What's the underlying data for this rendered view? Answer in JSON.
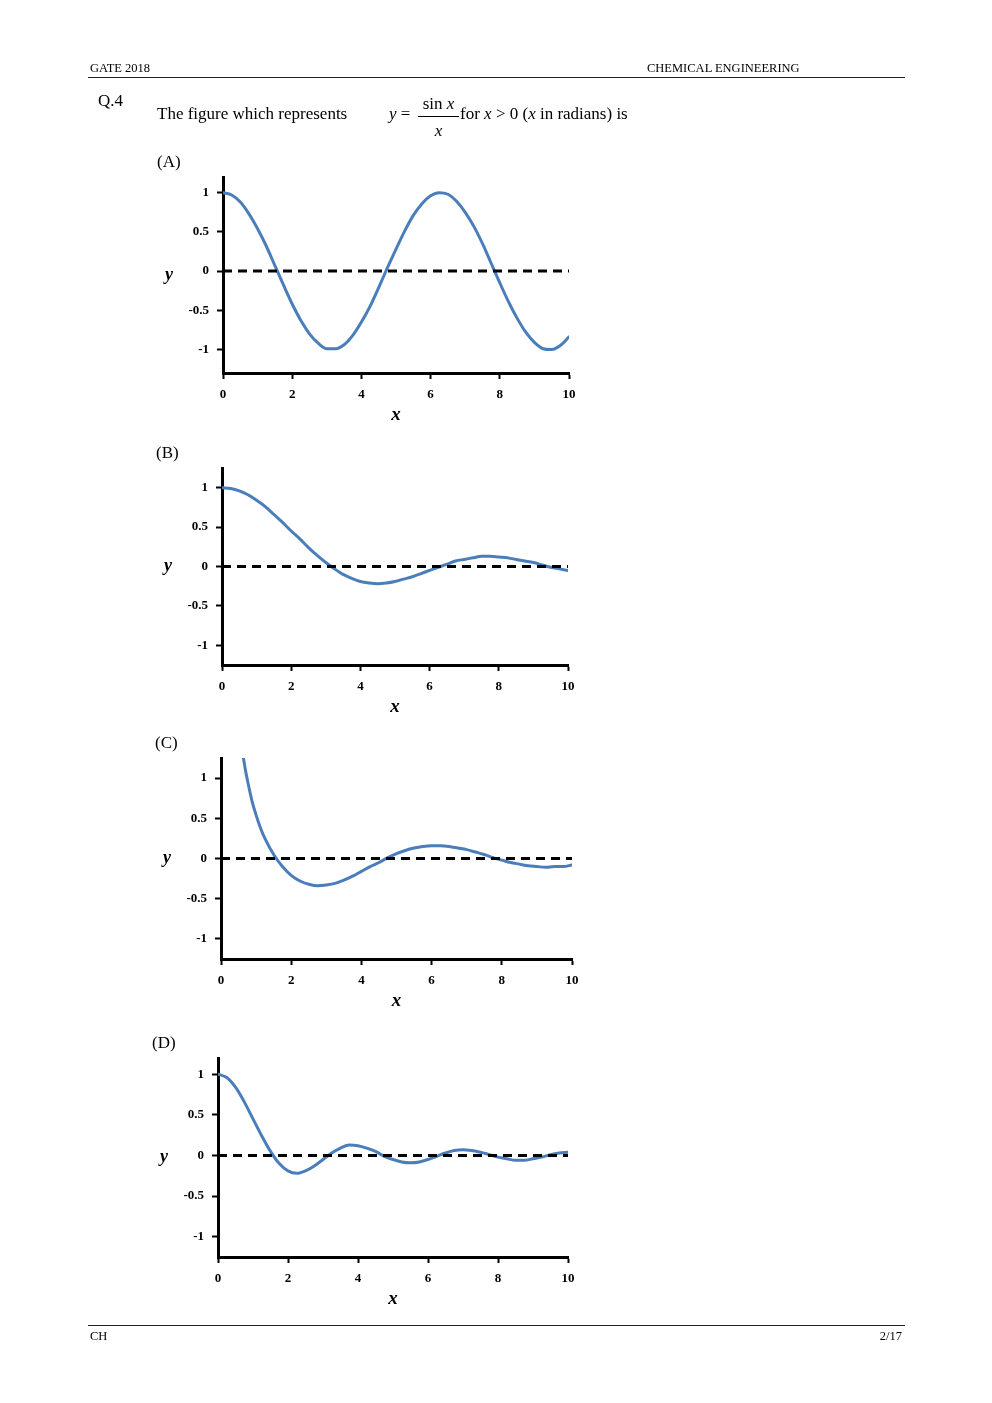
{
  "chart_data": [
    {
      "type": "line",
      "title": "(A)",
      "xlabel": "x",
      "ylabel": "y",
      "marker": "none",
      "annotations": [
        "GATE 2018",
        "CHEMICAL ENGINEERING",
        "Q.4",
        "The figure which represents",
        "y =",
        "sin x",
        "x",
        "for x > 0 (x in radians) is"
      ],
      "x": [
        0,
        0.25,
        0.5,
        0.75,
        1,
        1.25,
        1.5,
        1.75,
        2,
        2.25,
        2.5,
        2.75,
        3,
        3.25,
        3.5,
        3.75,
        4,
        4.25,
        4.5,
        4.75,
        5,
        5.25,
        5.5,
        5.75,
        6,
        6.25,
        6.5,
        6.75,
        7,
        7.25,
        7.5,
        7.75,
        8,
        8.25,
        8.5,
        8.75,
        9,
        9.25,
        9.5,
        9.75,
        10
      ],
      "series": [
        {
          "color": "#4a7ebb",
          "values": [
            1,
            0.97,
            0.88,
            0.73,
            0.54,
            0.32,
            0.07,
            -0.18,
            -0.42,
            -0.63,
            -0.8,
            -0.92,
            -0.99,
            -0.99,
            -0.94,
            -0.82,
            -0.65,
            -0.45,
            -0.21,
            0.04,
            0.28,
            0.51,
            0.71,
            0.86,
            0.96,
            1,
            0.98,
            0.89,
            0.75,
            0.57,
            0.35,
            0.1,
            -0.15,
            -0.39,
            -0.6,
            -0.78,
            -0.91,
            -0.99,
            -1,
            -0.95,
            -0.84
          ]
        }
      ],
      "xlim": [
        0,
        10
      ],
      "ylim": [
        -1.3,
        1.2
      ],
      "xticks": [
        0,
        2,
        4,
        6,
        8,
        10
      ],
      "yticks": [
        -1,
        -0.5,
        0,
        0.5,
        1
      ],
      "ref_lines": [
        {
          "axis": "y",
          "value": 0,
          "color": "#000000",
          "line_style": "dashed"
        }
      ]
    },
    {
      "type": "line",
      "title": "(B)",
      "xlabel": "x",
      "ylabel": "y",
      "marker": "none",
      "x": [
        0,
        0.25,
        0.5,
        0.75,
        1,
        1.25,
        1.5,
        1.75,
        2,
        2.25,
        2.5,
        2.75,
        3,
        3.25,
        3.5,
        3.75,
        4,
        4.25,
        4.5,
        4.75,
        5,
        5.25,
        5.5,
        5.75,
        6,
        6.25,
        6.5,
        6.75,
        7,
        7.25,
        7.5,
        7.75,
        8,
        8.25,
        8.5,
        8.75,
        9,
        9.25,
        9.5,
        9.75,
        10
      ],
      "series": [
        {
          "color": "#4a7ebb",
          "values": [
            1,
            0.99,
            0.96,
            0.91,
            0.84,
            0.76,
            0.66,
            0.56,
            0.45,
            0.35,
            0.24,
            0.14,
            0.05,
            -0.03,
            -0.1,
            -0.15,
            -0.19,
            -0.21,
            -0.22,
            -0.21,
            -0.19,
            -0.16,
            -0.13,
            -0.09,
            -0.05,
            -0.01,
            0.03,
            0.07,
            0.09,
            0.11,
            0.13,
            0.13,
            0.12,
            0.11,
            0.09,
            0.07,
            0.05,
            0.02,
            -0.01,
            -0.03,
            -0.05
          ]
        }
      ],
      "xlim": [
        0,
        10
      ],
      "ylim": [
        -1.25,
        1.25
      ],
      "xticks": [
        0,
        2,
        4,
        6,
        8,
        10
      ],
      "yticks": [
        -1,
        -0.5,
        0,
        0.5,
        1
      ],
      "ref_lines": [
        {
          "axis": "y",
          "value": 0,
          "color": "#000000",
          "line_style": "dashed"
        }
      ]
    },
    {
      "type": "line",
      "title": "(C)",
      "xlabel": "x",
      "ylabel": "y",
      "marker": "none",
      "x": [
        0.64,
        0.7,
        0.75,
        0.875,
        1,
        1.125,
        1.25,
        1.5,
        1.75,
        2,
        2.25,
        2.5,
        2.75,
        3,
        3.25,
        3.5,
        3.75,
        4,
        4.25,
        4.5,
        4.75,
        5,
        5.25,
        5.5,
        5.75,
        6,
        6.25,
        6.5,
        6.75,
        7,
        7.25,
        7.5,
        7.75,
        8,
        8.25,
        8.5,
        8.75,
        9,
        9.25,
        9.5,
        9.75,
        10
      ],
      "series": [
        {
          "color": "#4a7ebb",
          "values": [
            1.25,
            1.09,
            0.98,
            0.73,
            0.54,
            0.38,
            0.25,
            0.05,
            -0.1,
            -0.21,
            -0.28,
            -0.32,
            -0.34,
            -0.33,
            -0.31,
            -0.27,
            -0.22,
            -0.16,
            -0.1,
            -0.05,
            0.01,
            0.06,
            0.1,
            0.13,
            0.15,
            0.16,
            0.16,
            0.15,
            0.13,
            0.11,
            0.08,
            0.05,
            0.01,
            -0.02,
            -0.05,
            -0.07,
            -0.09,
            -0.1,
            -0.11,
            -0.1,
            -0.1,
            -0.08
          ]
        }
      ],
      "xlim": [
        0,
        10
      ],
      "ylim": [
        -1.25,
        1.25
      ],
      "xticks": [
        0,
        2,
        4,
        6,
        8,
        10
      ],
      "yticks": [
        -1,
        -0.5,
        0,
        0.5,
        1
      ],
      "ref_lines": [
        {
          "axis": "y",
          "value": 0,
          "color": "#000000",
          "line_style": "dashed"
        }
      ]
    },
    {
      "type": "line",
      "title": "(D)",
      "xlabel": "x",
      "ylabel": "y",
      "marker": "none",
      "annotations": [
        "CH",
        "2/17"
      ],
      "x": [
        0,
        0.25,
        0.5,
        0.75,
        1,
        1.25,
        1.5,
        1.75,
        2,
        2.25,
        2.5,
        2.75,
        3,
        3.25,
        3.5,
        3.75,
        4,
        4.25,
        4.5,
        4.75,
        5,
        5.25,
        5.5,
        5.75,
        6,
        6.25,
        6.5,
        6.75,
        7,
        7.25,
        7.5,
        7.75,
        8,
        8.25,
        8.5,
        8.75,
        9,
        9.25,
        9.5,
        9.75,
        10
      ],
      "series": [
        {
          "color": "#4a7ebb",
          "values": [
            1,
            0.96,
            0.84,
            0.66,
            0.45,
            0.24,
            0.05,
            -0.1,
            -0.19,
            -0.22,
            -0.19,
            -0.13,
            -0.05,
            0.03,
            0.09,
            0.13,
            0.12,
            0.09,
            0.05,
            -0.01,
            -0.05,
            -0.08,
            -0.09,
            -0.08,
            -0.05,
            -0.01,
            0.03,
            0.06,
            0.07,
            0.06,
            0.04,
            0.01,
            -0.02,
            -0.04,
            -0.06,
            -0.06,
            -0.04,
            -0.02,
            0.01,
            0.03,
            0.04
          ]
        }
      ],
      "xlim": [
        0,
        10
      ],
      "ylim": [
        -1.25,
        1.2
      ],
      "xticks": [
        0,
        2,
        4,
        6,
        8,
        10
      ],
      "yticks": [
        -1,
        -0.5,
        0,
        0.5,
        1
      ],
      "ref_lines": [
        {
          "axis": "y",
          "value": 0,
          "color": "#000000",
          "line_style": "dashed"
        }
      ]
    }
  ]
}
